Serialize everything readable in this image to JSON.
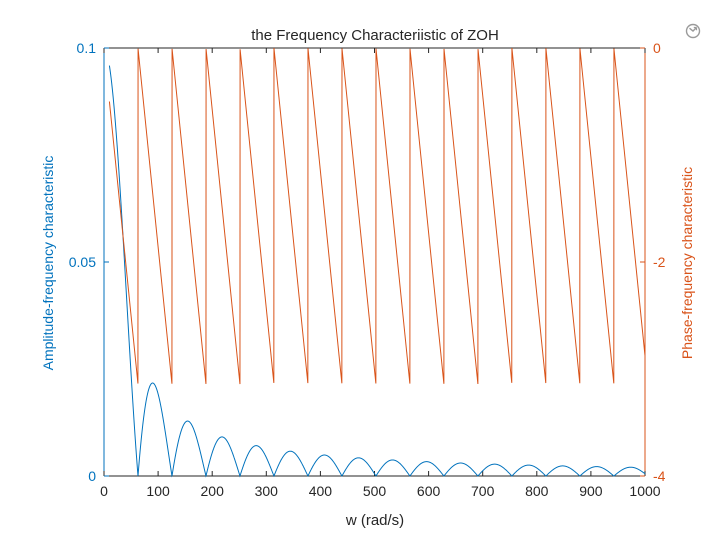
{
  "chart_data": {
    "type": "line",
    "title": "the Frequency Characteriistic of ZOH",
    "xlabel": "w (rad/s)",
    "xlim": [
      0,
      1000
    ],
    "xticks": [
      0,
      100,
      200,
      300,
      400,
      500,
      600,
      700,
      800,
      900,
      1000
    ],
    "left_axis": {
      "ylabel": "Amplitude-frequency characteristic",
      "ylim": [
        0,
        0.1
      ],
      "ticks": [
        0,
        0.05,
        0.1
      ],
      "tick_labels": [
        "0",
        "0.05",
        "0.1"
      ],
      "color": "#0072BD"
    },
    "right_axis": {
      "ylabel": "Phase-frequency characteristic",
      "ylim": [
        -4,
        0
      ],
      "ticks": [
        -4,
        -2,
        0
      ],
      "tick_labels": [
        "-4",
        "-2",
        "0"
      ],
      "color": "#D95319"
    },
    "sample_period_T": 0.1,
    "x_range_plotted": [
      10,
      1000
    ],
    "series": [
      {
        "name": "Amplitude-frequency characteristic",
        "axis": "left",
        "formula": "|T*sin(w*T/2)/(w*T/2)|",
        "color": "#0072BD",
        "points": [
          [
            10,
            0.0959
          ],
          [
            20,
            0.0841
          ],
          [
            30,
            0.0665
          ],
          [
            40,
            0.0455
          ],
          [
            50,
            0.024
          ],
          [
            62.83,
            0.0
          ],
          [
            80,
            0.0189
          ],
          [
            94.25,
            0.0212
          ],
          [
            110,
            0.0128
          ],
          [
            125.66,
            0.0
          ],
          [
            157.08,
            0.0127
          ],
          [
            188.5,
            0.0
          ],
          [
            219.9,
            0.0091
          ],
          [
            251.3,
            0.0
          ],
          [
            282.7,
            0.0071
          ],
          [
            314.2,
            0.0
          ],
          [
            345.6,
            0.0058
          ],
          [
            377,
            0.0
          ],
          [
            408.4,
            0.0049
          ],
          [
            439.8,
            0.0
          ],
          [
            471.2,
            0.0042
          ],
          [
            502.7,
            0.0
          ],
          [
            534.1,
            0.0037
          ],
          [
            565.5,
            0.0
          ],
          [
            596.9,
            0.0034
          ],
          [
            628.3,
            0.0
          ],
          [
            659.7,
            0.003
          ],
          [
            691.2,
            0.0
          ],
          [
            722.6,
            0.0028
          ],
          [
            754,
            0.0
          ],
          [
            785.4,
            0.0025
          ],
          [
            816.8,
            0.0
          ],
          [
            848.2,
            0.0024
          ],
          [
            879.6,
            0.0
          ],
          [
            911.1,
            0.0022
          ],
          [
            942.5,
            0.0
          ],
          [
            973.9,
            0.0021
          ],
          [
            1000,
            0.0
          ]
        ]
      },
      {
        "name": "Phase-frequency characteristic",
        "axis": "right",
        "formula": "wrap(-w*T/2) to (-pi, pi]",
        "color": "#D95319",
        "points": [
          [
            10,
            -0.5
          ],
          [
            62.83,
            -3.1416
          ],
          [
            62.83,
            0.0
          ],
          [
            125.66,
            -3.1416
          ],
          [
            125.66,
            0.0
          ],
          [
            188.5,
            -3.1416
          ],
          [
            188.5,
            0.0
          ],
          [
            1000,
            -3.0
          ]
        ]
      }
    ]
  },
  "ui": {
    "restore_view_icon": "restore-view-icon"
  }
}
